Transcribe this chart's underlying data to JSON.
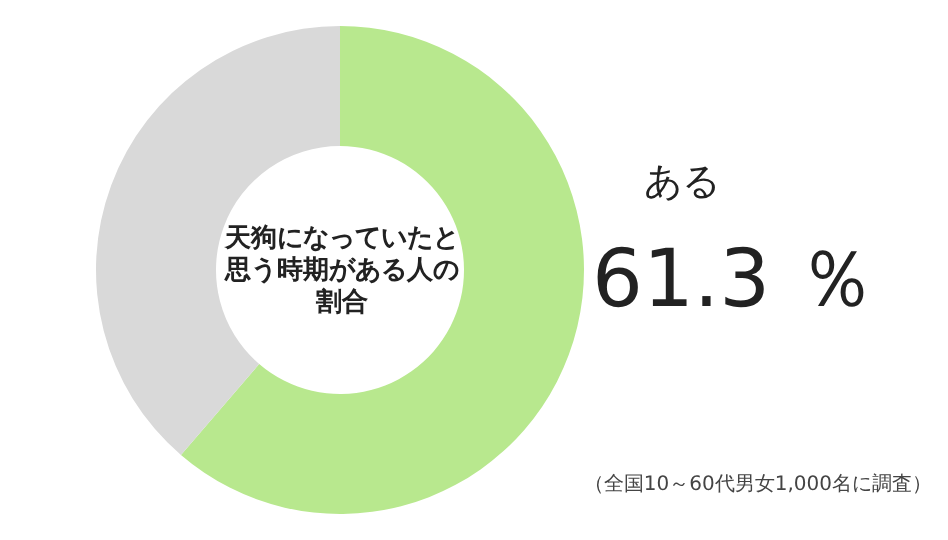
{
  "chart_data": {
    "type": "donut",
    "title": "天狗になっていたと思う時期がある人の割合",
    "categories": [
      "ある",
      null
    ],
    "values": [
      61.3,
      38.7
    ],
    "colors": [
      "#b8e88e",
      "#d9d9d9"
    ],
    "value_labels": [
      "61.3 ％",
      null
    ],
    "annotations": [
      "（全国10～60代男女1,000名に調査）"
    ]
  }
}
